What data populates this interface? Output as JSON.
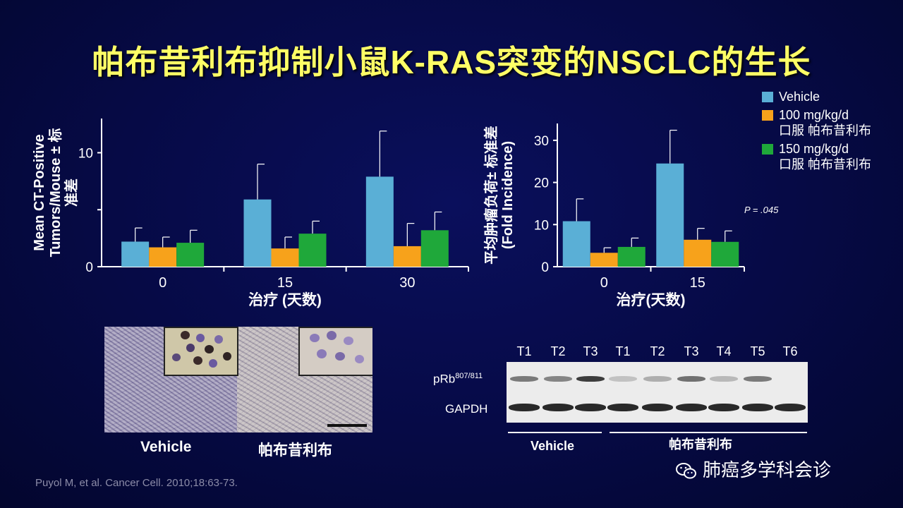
{
  "title": "帕布昔利布抑制小鼠K-RAS突变的NSCLC的生长",
  "legend": [
    {
      "label_line1": "Vehicle",
      "label_line2": "",
      "color": "#5aafd6"
    },
    {
      "label_line1": "100 mg/kg/d",
      "label_line2": "口服 帕布昔利布",
      "color": "#f7a21b"
    },
    {
      "label_line1": "150 mg/kg/d",
      "label_line2": "口服 帕布昔利布",
      "color": "#1fa83a"
    }
  ],
  "chart_data": [
    {
      "type": "bar",
      "categories": [
        "0",
        "15",
        "30"
      ],
      "series": [
        {
          "name": "Vehicle",
          "values": [
            2.2,
            5.9,
            7.9
          ],
          "errors": [
            1.2,
            3.1,
            4.0
          ]
        },
        {
          "name": "100 mg/kg/d 口服 帕布昔利布",
          "values": [
            1.7,
            1.6,
            1.8
          ],
          "errors": [
            0.9,
            1.0,
            2.0
          ]
        },
        {
          "name": "150 mg/kg/d 口服 帕布昔利布",
          "values": [
            2.1,
            2.9,
            3.2
          ],
          "errors": [
            1.1,
            1.1,
            1.6
          ]
        }
      ],
      "yticks": [
        0,
        5,
        10
      ],
      "ytick_labels": [
        "0",
        "",
        "10"
      ],
      "ylim": [
        0,
        13
      ],
      "xlabel": "治疗 (天数)",
      "ylabel_line1": "Mean CT-Positive",
      "ylabel_line2": "Tumors/Mouse ± 标",
      "ylabel_line3": "准差",
      "annotation": ""
    },
    {
      "type": "bar",
      "categories": [
        "0",
        "15"
      ],
      "series": [
        {
          "name": "Vehicle",
          "values": [
            10.8,
            24.5
          ],
          "errors": [
            5.3,
            7.9
          ]
        },
        {
          "name": "100 mg/kg/d 口服 帕布昔利布",
          "values": [
            3.3,
            6.4
          ],
          "errors": [
            1.2,
            2.7
          ]
        },
        {
          "name": "150 mg/kg/d 口服 帕布昔利布",
          "values": [
            4.7,
            5.9
          ],
          "errors": [
            2.1,
            2.6
          ]
        }
      ],
      "yticks": [
        0,
        10,
        20,
        30
      ],
      "ytick_labels": [
        "0",
        "10",
        "20",
        "30"
      ],
      "ylim": [
        0,
        34
      ],
      "xlabel": "治疗(天数)",
      "ylabel_line1": "平均肿瘤负荷± 标准差",
      "ylabel_line2": "(Fold Incidence)",
      "ylabel_line3": "",
      "annotation": "P = .045"
    }
  ],
  "histology": {
    "label_left": "Vehicle",
    "label_right": "帕布昔利布"
  },
  "western_blot": {
    "lanes": [
      "T1",
      "T2",
      "T3",
      "T1",
      "T2",
      "T3",
      "T4",
      "T5",
      "T6"
    ],
    "row1_label": "pRb",
    "row1_sup": "807/811",
    "row2_label": "GAPDH",
    "group_vehicle": "Vehicle",
    "group_drug": "帕布昔利布"
  },
  "citation": "Puyol M, et al. Cancer Cell. 2010;18:63-73.",
  "watermark": "肺癌多学科会诊"
}
